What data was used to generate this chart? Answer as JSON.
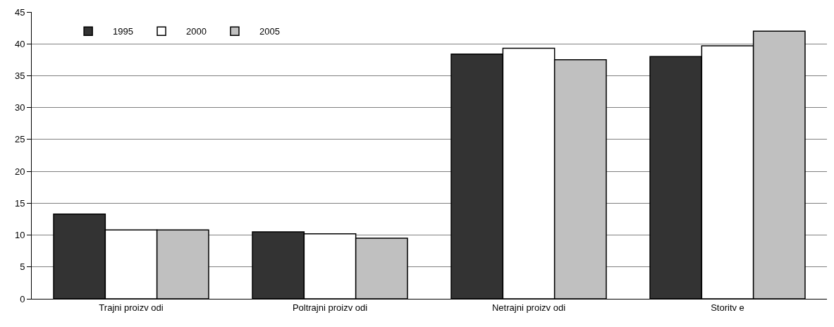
{
  "chart_data": {
    "type": "bar",
    "categories": [
      "Trajni proizv odi",
      "Poltrajni proizv odi",
      "Netrajni proizv odi",
      "Storitv e"
    ],
    "series": [
      {
        "name": "1995",
        "color": "#333333",
        "values": [
          13.3,
          10.5,
          38.4,
          38.0
        ]
      },
      {
        "name": "2000",
        "color": "#ffffff",
        "values": [
          10.8,
          10.2,
          39.3,
          39.7
        ]
      },
      {
        "name": "2005",
        "color": "#c0c0c0",
        "values": [
          10.8,
          9.5,
          37.5,
          42.0
        ]
      }
    ],
    "ylim": [
      0,
      45
    ],
    "yticks": [
      0,
      5,
      10,
      15,
      20,
      25,
      30,
      35,
      40,
      45
    ],
    "grid": "y",
    "legend": "top left"
  }
}
